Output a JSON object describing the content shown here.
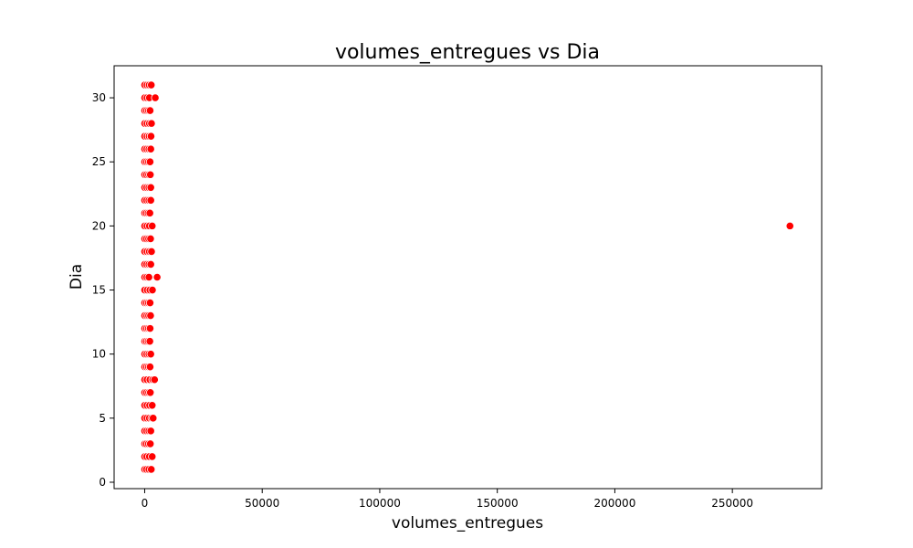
{
  "chart_data": {
    "type": "scatter",
    "title": "volumes_entregues vs Dia",
    "xlabel": "volumes_entregues",
    "ylabel": "Dia",
    "xlim": [
      -13000,
      288000
    ],
    "ylim": [
      -0.5,
      32.5
    ],
    "xticks": [
      0,
      50000,
      100000,
      150000,
      200000,
      250000
    ],
    "xtick_labels": [
      "0",
      "50000",
      "100000",
      "150000",
      "200000",
      "250000"
    ],
    "yticks": [
      0,
      5,
      10,
      15,
      20,
      25,
      30
    ],
    "ytick_labels": [
      "0",
      "5",
      "10",
      "15",
      "20",
      "25",
      "30"
    ],
    "grid": false,
    "color": "#ff0000",
    "series": [
      {
        "name": "volumes_entregues vs Dia",
        "points": [
          {
            "x": 0,
            "y": 1
          },
          {
            "x": 800,
            "y": 1
          },
          {
            "x": 1800,
            "y": 1
          },
          {
            "x": 2800,
            "y": 1
          },
          {
            "x": 0,
            "y": 2
          },
          {
            "x": 900,
            "y": 2
          },
          {
            "x": 2000,
            "y": 2
          },
          {
            "x": 3200,
            "y": 2
          },
          {
            "x": 0,
            "y": 3
          },
          {
            "x": 700,
            "y": 3
          },
          {
            "x": 1600,
            "y": 3
          },
          {
            "x": 2400,
            "y": 3
          },
          {
            "x": 0,
            "y": 4
          },
          {
            "x": 900,
            "y": 4
          },
          {
            "x": 1800,
            "y": 4
          },
          {
            "x": 2600,
            "y": 4
          },
          {
            "x": 0,
            "y": 5
          },
          {
            "x": 1000,
            "y": 5
          },
          {
            "x": 2000,
            "y": 5
          },
          {
            "x": 3000,
            "y": 5
          },
          {
            "x": 3600,
            "y": 5
          },
          {
            "x": 0,
            "y": 6
          },
          {
            "x": 1000,
            "y": 6
          },
          {
            "x": 2100,
            "y": 6
          },
          {
            "x": 3200,
            "y": 6
          },
          {
            "x": 0,
            "y": 7
          },
          {
            "x": 800,
            "y": 7
          },
          {
            "x": 1700,
            "y": 7
          },
          {
            "x": 2400,
            "y": 7
          },
          {
            "x": 0,
            "y": 8
          },
          {
            "x": 1000,
            "y": 8
          },
          {
            "x": 2200,
            "y": 8
          },
          {
            "x": 3400,
            "y": 8
          },
          {
            "x": 4200,
            "y": 8
          },
          {
            "x": 0,
            "y": 9
          },
          {
            "x": 800,
            "y": 9
          },
          {
            "x": 1600,
            "y": 9
          },
          {
            "x": 2300,
            "y": 9
          },
          {
            "x": 0,
            "y": 10
          },
          {
            "x": 900,
            "y": 10
          },
          {
            "x": 1800,
            "y": 10
          },
          {
            "x": 2600,
            "y": 10
          },
          {
            "x": 0,
            "y": 11
          },
          {
            "x": 700,
            "y": 11
          },
          {
            "x": 1500,
            "y": 11
          },
          {
            "x": 2200,
            "y": 11
          },
          {
            "x": 0,
            "y": 12
          },
          {
            "x": 800,
            "y": 12
          },
          {
            "x": 1600,
            "y": 12
          },
          {
            "x": 2300,
            "y": 12
          },
          {
            "x": 0,
            "y": 13
          },
          {
            "x": 900,
            "y": 13
          },
          {
            "x": 1700,
            "y": 13
          },
          {
            "x": 2500,
            "y": 13
          },
          {
            "x": 0,
            "y": 14
          },
          {
            "x": 800,
            "y": 14
          },
          {
            "x": 1600,
            "y": 14
          },
          {
            "x": 2300,
            "y": 14
          },
          {
            "x": 0,
            "y": 15
          },
          {
            "x": 1100,
            "y": 15
          },
          {
            "x": 2200,
            "y": 15
          },
          {
            "x": 3300,
            "y": 15
          },
          {
            "x": 0,
            "y": 16
          },
          {
            "x": 900,
            "y": 16
          },
          {
            "x": 1800,
            "y": 16
          },
          {
            "x": 5300,
            "y": 16
          },
          {
            "x": 0,
            "y": 17
          },
          {
            "x": 900,
            "y": 17
          },
          {
            "x": 1800,
            "y": 17
          },
          {
            "x": 2600,
            "y": 17
          },
          {
            "x": 0,
            "y": 18
          },
          {
            "x": 1000,
            "y": 18
          },
          {
            "x": 2000,
            "y": 18
          },
          {
            "x": 2900,
            "y": 18
          },
          {
            "x": 0,
            "y": 19
          },
          {
            "x": 800,
            "y": 19
          },
          {
            "x": 1700,
            "y": 19
          },
          {
            "x": 2500,
            "y": 19
          },
          {
            "x": 0,
            "y": 20
          },
          {
            "x": 1000,
            "y": 20
          },
          {
            "x": 2000,
            "y": 20
          },
          {
            "x": 3200,
            "y": 20
          },
          {
            "x": 274500,
            "y": 20
          },
          {
            "x": 0,
            "y": 21
          },
          {
            "x": 700,
            "y": 21
          },
          {
            "x": 1500,
            "y": 21
          },
          {
            "x": 2200,
            "y": 21
          },
          {
            "x": 0,
            "y": 22
          },
          {
            "x": 900,
            "y": 22
          },
          {
            "x": 1800,
            "y": 22
          },
          {
            "x": 2600,
            "y": 22
          },
          {
            "x": 0,
            "y": 23
          },
          {
            "x": 900,
            "y": 23
          },
          {
            "x": 1800,
            "y": 23
          },
          {
            "x": 2600,
            "y": 23
          },
          {
            "x": 0,
            "y": 24
          },
          {
            "x": 800,
            "y": 24
          },
          {
            "x": 1700,
            "y": 24
          },
          {
            "x": 2400,
            "y": 24
          },
          {
            "x": 0,
            "y": 25
          },
          {
            "x": 800,
            "y": 25
          },
          {
            "x": 1600,
            "y": 25
          },
          {
            "x": 2300,
            "y": 25
          },
          {
            "x": 0,
            "y": 26
          },
          {
            "x": 900,
            "y": 26
          },
          {
            "x": 1800,
            "y": 26
          },
          {
            "x": 2600,
            "y": 26
          },
          {
            "x": 0,
            "y": 27
          },
          {
            "x": 1000,
            "y": 27
          },
          {
            "x": 1900,
            "y": 27
          },
          {
            "x": 2700,
            "y": 27
          },
          {
            "x": 0,
            "y": 28
          },
          {
            "x": 1000,
            "y": 28
          },
          {
            "x": 2000,
            "y": 28
          },
          {
            "x": 2900,
            "y": 28
          },
          {
            "x": 0,
            "y": 29
          },
          {
            "x": 800,
            "y": 29
          },
          {
            "x": 1600,
            "y": 29
          },
          {
            "x": 2300,
            "y": 29
          },
          {
            "x": 0,
            "y": 30
          },
          {
            "x": 1000,
            "y": 30
          },
          {
            "x": 2000,
            "y": 30
          },
          {
            "x": 4500,
            "y": 30
          },
          {
            "x": 0,
            "y": 31
          },
          {
            "x": 1000,
            "y": 31
          },
          {
            "x": 1900,
            "y": 31
          },
          {
            "x": 2800,
            "y": 31
          }
        ]
      }
    ]
  }
}
